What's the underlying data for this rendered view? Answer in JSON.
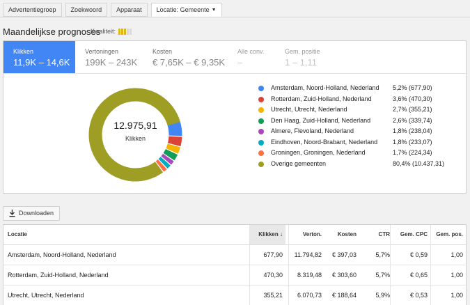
{
  "tabs": [
    {
      "label": "Advertentiegroep"
    },
    {
      "label": "Zoekwoord"
    },
    {
      "label": "Apparaat"
    },
    {
      "label": "Locatie: Gemeente"
    }
  ],
  "heading": "Maandelijkse prognoses",
  "quality": {
    "label": "Kwaliteit:",
    "level": 3,
    "max": 5,
    "color": "#e2b713"
  },
  "metrics": [
    {
      "label": "Klikken",
      "value": "11,9K – 14,6K"
    },
    {
      "label": "Vertoningen",
      "value": "199K – 243K"
    },
    {
      "label": "Kosten",
      "value": "€ 7,65K – € 9,35K"
    },
    {
      "label": "Alle conv.",
      "value": "–"
    },
    {
      "label": "Gem. positie",
      "value": "1 – 1,11"
    }
  ],
  "donut": {
    "total": "12.975,91",
    "label": "Klikken"
  },
  "chart_data": {
    "type": "pie",
    "donut": true,
    "title": "",
    "slices": [
      {
        "label": "Amsterdam, Noord-Holland, Nederland",
        "percent": 5.2,
        "value": 677.9,
        "display": "5,2% (677,90)",
        "color": "#4285f4"
      },
      {
        "label": "Rotterdam, Zuid-Holland, Nederland",
        "percent": 3.6,
        "value": 470.3,
        "display": "3,6% (470,30)",
        "color": "#db4437"
      },
      {
        "label": "Utrecht, Utrecht, Nederland",
        "percent": 2.7,
        "value": 355.21,
        "display": "2,7% (355,21)",
        "color": "#f4b400"
      },
      {
        "label": "Den Haag, Zuid-Holland, Nederland",
        "percent": 2.6,
        "value": 339.74,
        "display": "2,6% (339,74)",
        "color": "#0f9d58"
      },
      {
        "label": "Almere, Flevoland, Nederland",
        "percent": 1.8,
        "value": 238.04,
        "display": "1,8% (238,04)",
        "color": "#ab47bc"
      },
      {
        "label": "Eindhoven, Noord-Brabant, Nederland",
        "percent": 1.8,
        "value": 233.07,
        "display": "1,8% (233,07)",
        "color": "#00acc1"
      },
      {
        "label": "Groningen, Groningen, Nederland",
        "percent": 1.7,
        "value": 224.34,
        "display": "1,7% (224,34)",
        "color": "#ff7043"
      },
      {
        "label": "Overige gemeenten",
        "percent": 80.4,
        "value": 10437.31,
        "display": "80,4% (10.437,31)",
        "color": "#9e9d24"
      }
    ]
  },
  "download_label": "Downloaden",
  "table": {
    "columns": [
      "Locatie",
      "Klikken",
      "Verton.",
      "Kosten",
      "CTR",
      "Gem. CPC",
      "Gem. pos."
    ],
    "sort_indicator": "↓",
    "rows": [
      [
        "Amsterdam, Noord-Holland, Nederland",
        "677,90",
        "11.794,82",
        "€ 397,03",
        "5,7%",
        "€ 0,59",
        "1,00"
      ],
      [
        "Rotterdam, Zuid-Holland, Nederland",
        "470,30",
        "8.319,48",
        "€ 303,60",
        "5,7%",
        "€ 0,65",
        "1,00"
      ],
      [
        "Utrecht, Utrecht, Nederland",
        "355,21",
        "6.070,73",
        "€ 188,64",
        "5,9%",
        "€ 0,53",
        "1,00"
      ]
    ]
  }
}
